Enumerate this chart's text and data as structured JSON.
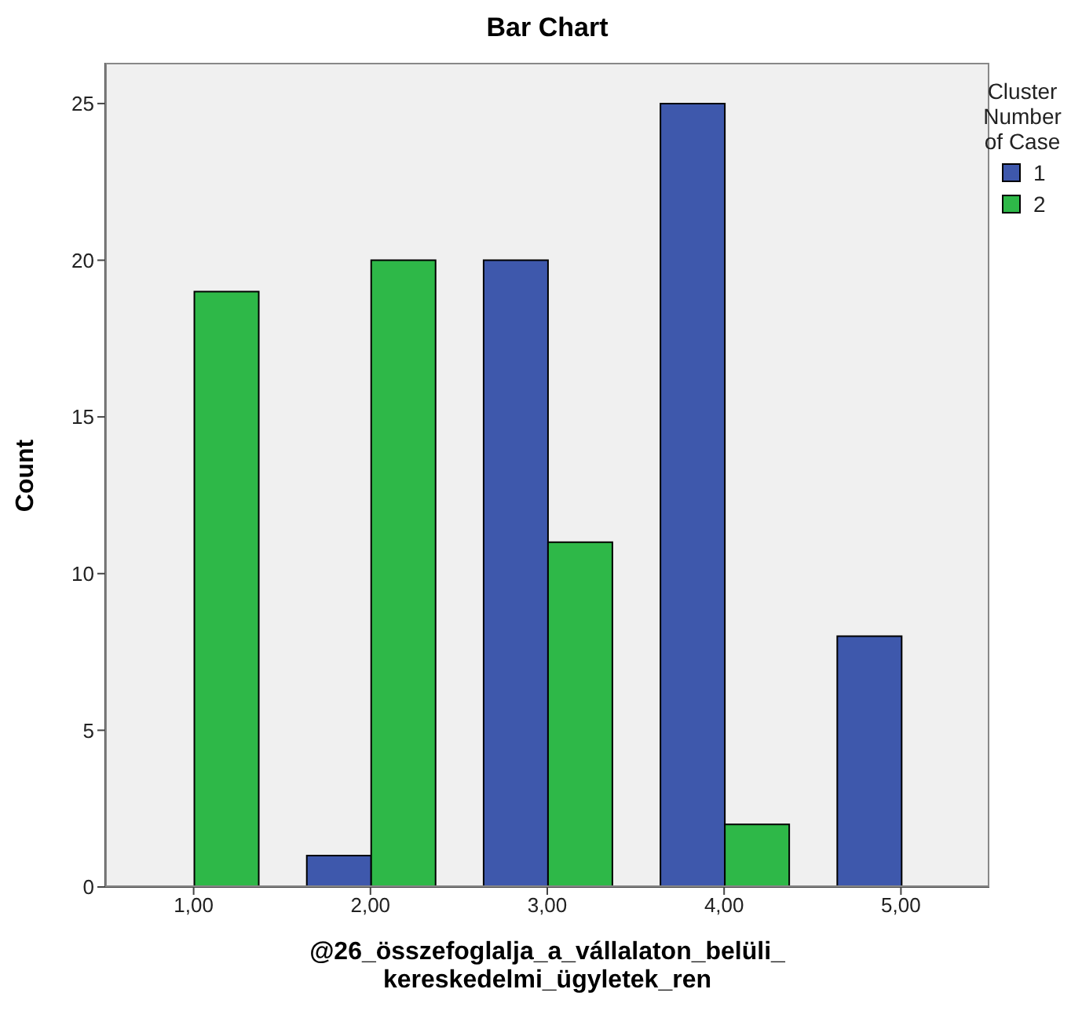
{
  "chart_data": {
    "type": "bar",
    "title": "Bar Chart",
    "xlabel": "@26_összefoglalja_a_vállalaton_belüli_\nkereskedelmi_ügyletek_ren",
    "ylabel": "Count",
    "legend_title": "Cluster Number of Case",
    "categories": [
      "1,00",
      "2,00",
      "3,00",
      "4,00",
      "5,00"
    ],
    "series": [
      {
        "name": "1",
        "color": "#3e58ac",
        "values": [
          0,
          1,
          20,
          25,
          8
        ]
      },
      {
        "name": "2",
        "color": "#2eb848",
        "values": [
          19,
          20,
          11,
          2,
          0
        ]
      }
    ],
    "ylim": [
      0,
      26.3
    ],
    "yticks": [
      0,
      5,
      10,
      15,
      20,
      25
    ],
    "grid": false,
    "legend": "top right"
  }
}
